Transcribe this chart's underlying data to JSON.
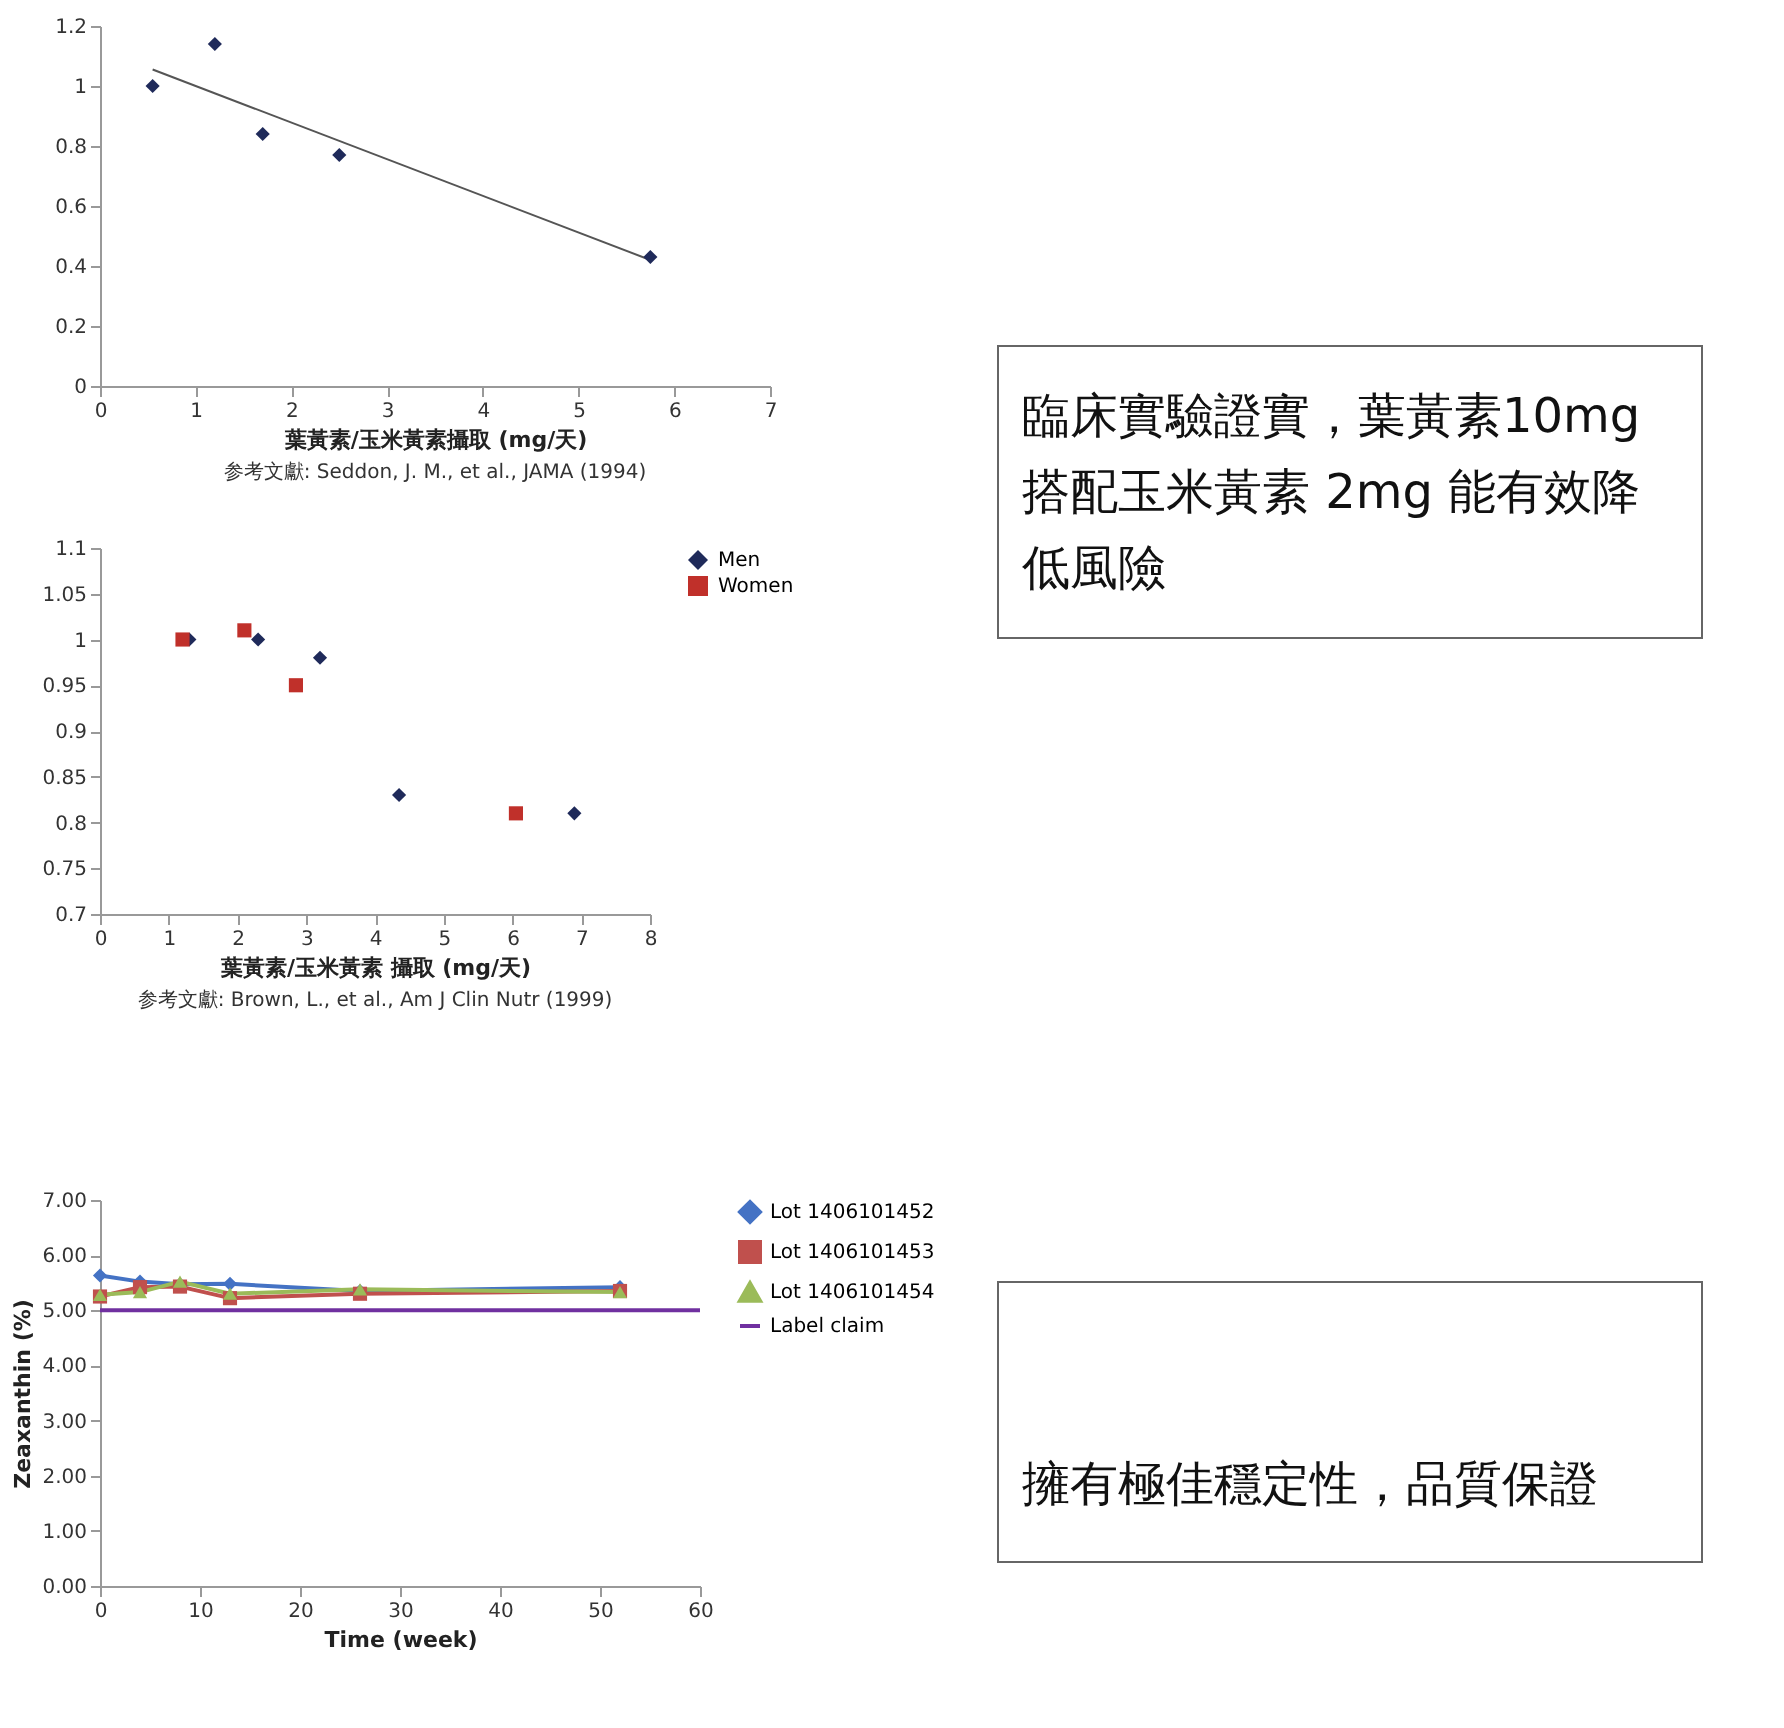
{
  "chart_data": [
    {
      "type": "scatter",
      "x": [
        0.55,
        1.2,
        1.7,
        2.5,
        5.75
      ],
      "series": [
        {
          "color": "#1f2a5a",
          "marker": "diamond",
          "values": [
            1.0,
            1.14,
            0.84,
            0.77,
            0.43
          ]
        },
        {
          "type": "line",
          "marker": "none",
          "line_style": "solid",
          "color": "#555555",
          "x": [
            0.55,
            5.75
          ],
          "values": [
            1.055,
            0.42
          ]
        }
      ],
      "xlim": [
        0,
        7
      ],
      "xticks": [
        0,
        1,
        2,
        3,
        4,
        5,
        6,
        7
      ],
      "ylim": [
        0,
        1.2
      ],
      "yticks": [
        0,
        0.2,
        0.4,
        0.6,
        0.8,
        1,
        1.2
      ],
      "xlabel": "葉黃素/玉米黃素攝取 (mg/天)",
      "annotations": [
        "参考文獻: Seddon, J. M., et al., JAMA (1994)"
      ]
    },
    {
      "type": "other",
      "annotations": [
        "臨床實驗證實，葉黃素10mg",
        "搭配玉米黃素 2mg 能有效降",
        "低風險"
      ]
    },
    {
      "type": "scatter",
      "series": [
        {
          "name": "Men",
          "color": "#1f2a5a",
          "marker": "diamond",
          "x": [
            1.3,
            2.3,
            3.2,
            4.35,
            6.9
          ],
          "values": [
            1.0,
            1.0,
            0.98,
            0.83,
            0.81
          ]
        },
        {
          "name": "Women",
          "color": "#c0302a",
          "marker": "square",
          "x": [
            1.2,
            2.1,
            2.85,
            6.05
          ],
          "values": [
            1.0,
            1.01,
            0.95,
            0.81
          ]
        }
      ],
      "xlim": [
        0,
        8
      ],
      "xticks": [
        0,
        1,
        2,
        3,
        4,
        5,
        6,
        7,
        8
      ],
      "ylim": [
        0.7,
        1.1
      ],
      "yticks": [
        0.7,
        0.75,
        0.8,
        0.85,
        0.9,
        0.95,
        1,
        1.05,
        1.1
      ],
      "xlabel": "葉黃素/玉米黃素 攝取 (mg/天)",
      "legend": "right",
      "annotations": [
        "参考文獻: Brown, L., et al., Am J Clin Nutr (1999)"
      ]
    },
    {
      "type": "line",
      "x": [
        0,
        4,
        8,
        13,
        26,
        52
      ],
      "series": [
        {
          "name": "Lot 1406101452",
          "color": "#4472c4",
          "marker": "diamond",
          "values": [
            5.63,
            5.52,
            5.47,
            5.48,
            5.35,
            5.42
          ]
        },
        {
          "name": "Lot 1406101453",
          "color": "#c0504d",
          "marker": "square",
          "values": [
            5.25,
            5.42,
            5.43,
            5.22,
            5.3,
            5.35
          ]
        },
        {
          "name": "Lot 1406101454",
          "color": "#9bbb59",
          "marker": "triangle",
          "values": [
            5.28,
            5.33,
            5.52,
            5.3,
            5.38,
            5.33
          ]
        },
        {
          "name": "Label claim",
          "color": "#7030a0",
          "marker": "none",
          "x": [
            0,
            60
          ],
          "values": [
            5,
            5
          ]
        }
      ],
      "xlim": [
        0,
        60
      ],
      "xticks": [
        0,
        10,
        20,
        30,
        40,
        50,
        60
      ],
      "ylim": [
        0,
        7
      ],
      "yticks": [
        {
          "value": 0,
          "label": "0.00"
        },
        {
          "value": 1,
          "label": "1.00"
        },
        {
          "value": 2,
          "label": "2.00"
        },
        {
          "value": 3,
          "label": "3.00"
        },
        {
          "value": 4,
          "label": "4.00"
        },
        {
          "value": 5,
          "label": "5.00"
        },
        {
          "value": 6,
          "label": "6.00"
        },
        {
          "value": 7,
          "label": "7.00"
        }
      ],
      "xlabel": "Time (week)",
      "ylabel": "Zeaxanthin (%)",
      "legend": "right"
    },
    {
      "type": "other",
      "annotations": [
        "擁有極佳穩定性，品質保證"
      ]
    }
  ]
}
